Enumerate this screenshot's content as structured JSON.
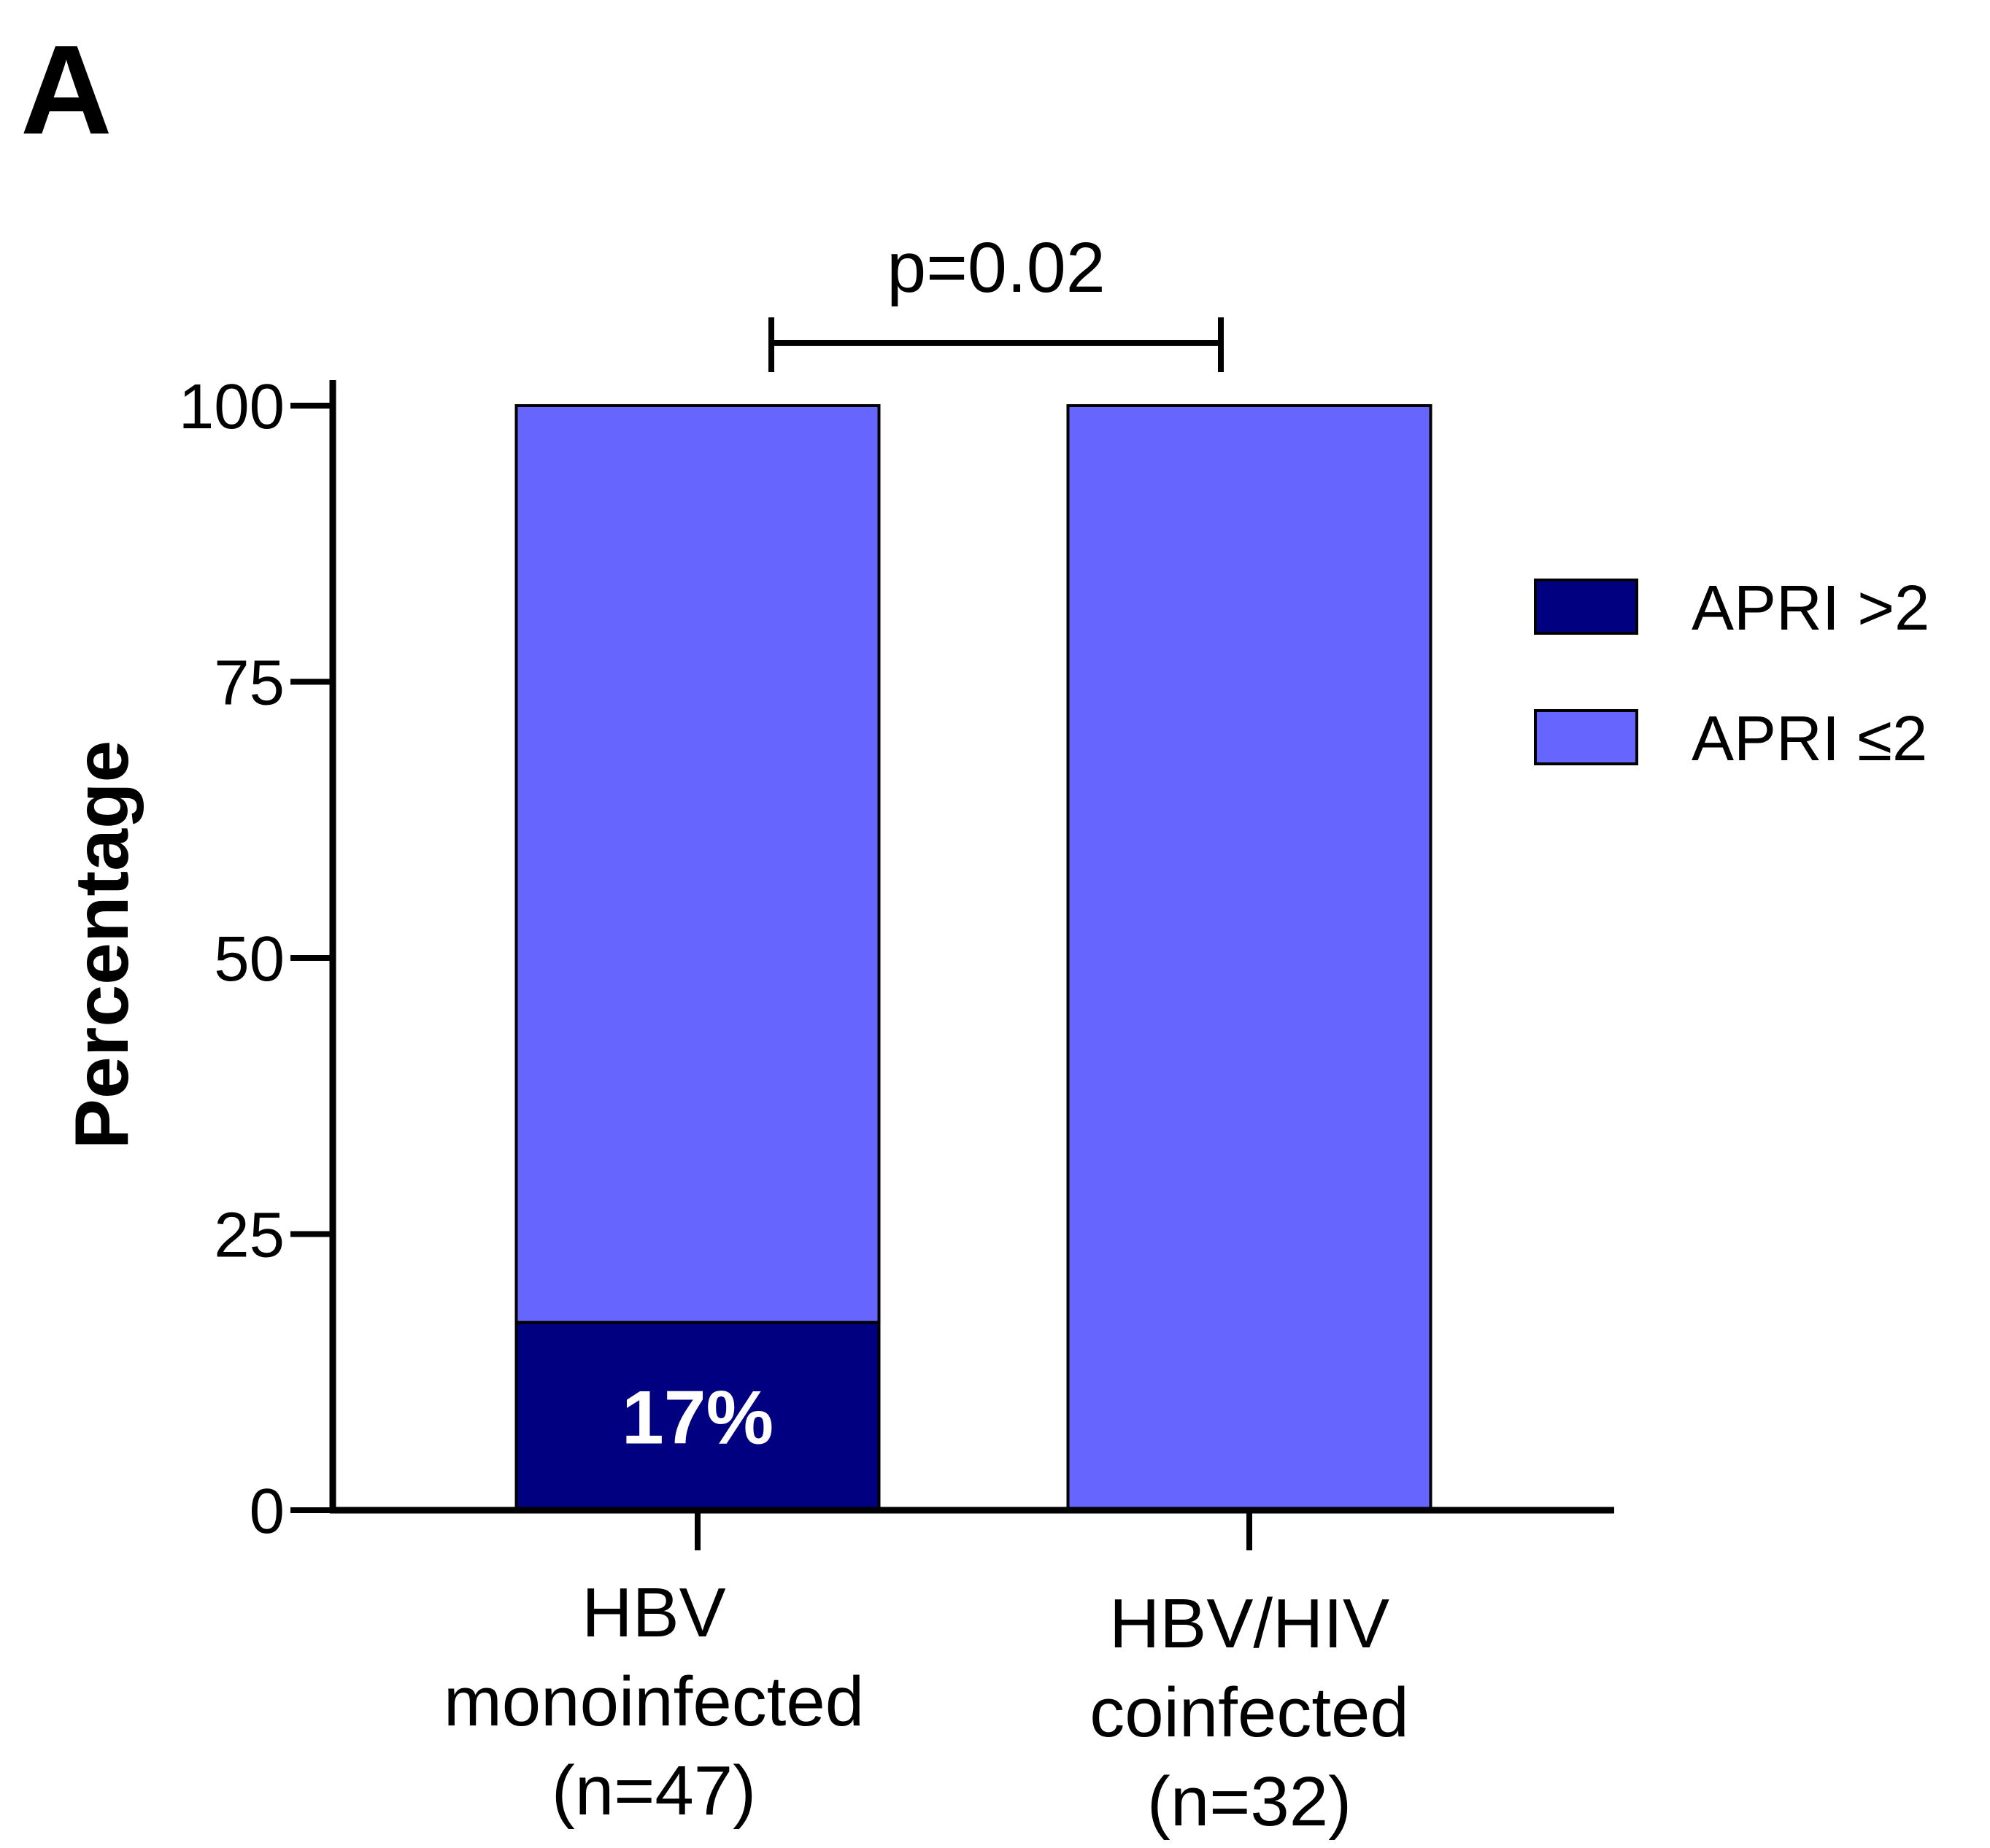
{
  "panel_label": "A",
  "chart_data": {
    "type": "stacked_bar",
    "y_label": "Percentage",
    "annotation": "p=0.02",
    "categories": [
      [
        "HBV",
        "monoinfected",
        "(n=47)"
      ],
      [
        "HBV/HIV",
        "coinfected",
        "(n=32)"
      ]
    ],
    "series": [
      {
        "name": "APRI >2",
        "color": "#000080",
        "values": [
          17,
          0
        ],
        "value_labels": [
          "17%",
          null
        ]
      },
      {
        "name": "APRI ≤2",
        "color": "#6666ff",
        "values": [
          83,
          100
        ]
      }
    ],
    "ylim": [
      0,
      100
    ],
    "yticks": [
      0,
      25,
      50,
      75,
      100
    ],
    "legend": "right"
  }
}
